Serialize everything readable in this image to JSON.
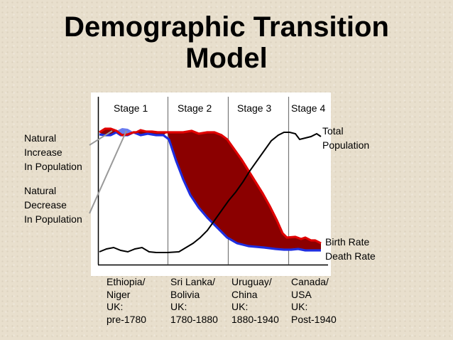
{
  "title": {
    "line1": "Demographic Transition",
    "line2": "Model"
  },
  "stages": [
    "Stage 1",
    "Stage 2",
    "Stage 3",
    "Stage 4"
  ],
  "labels": {
    "natural_increase": [
      "Natural",
      "Increase",
      "In Population"
    ],
    "natural_decrease": [
      "Natural",
      "Decrease",
      "In Population"
    ],
    "total_population": [
      "Total",
      "Population"
    ],
    "birth_rate": "Birth Rate",
    "death_rate": "Death Rate"
  },
  "examples": [
    [
      "Ethiopia/",
      "Niger",
      "UK:",
      "pre-1780"
    ],
    [
      "Sri Lanka/",
      "Bolivia",
      "UK:",
      "1780-1880"
    ],
    [
      "Uruguay/",
      "China",
      "UK:",
      "1880-1940"
    ],
    [
      "Canada/",
      "USA",
      "UK:",
      "Post-1940"
    ]
  ],
  "colors": {
    "birth_rate": "#e00000",
    "death_rate": "#1f2ee0",
    "natural_increase_fill": "#8b0000",
    "natural_decrease_fill": "#6a7cf0",
    "total_population": "#000000"
  }
}
